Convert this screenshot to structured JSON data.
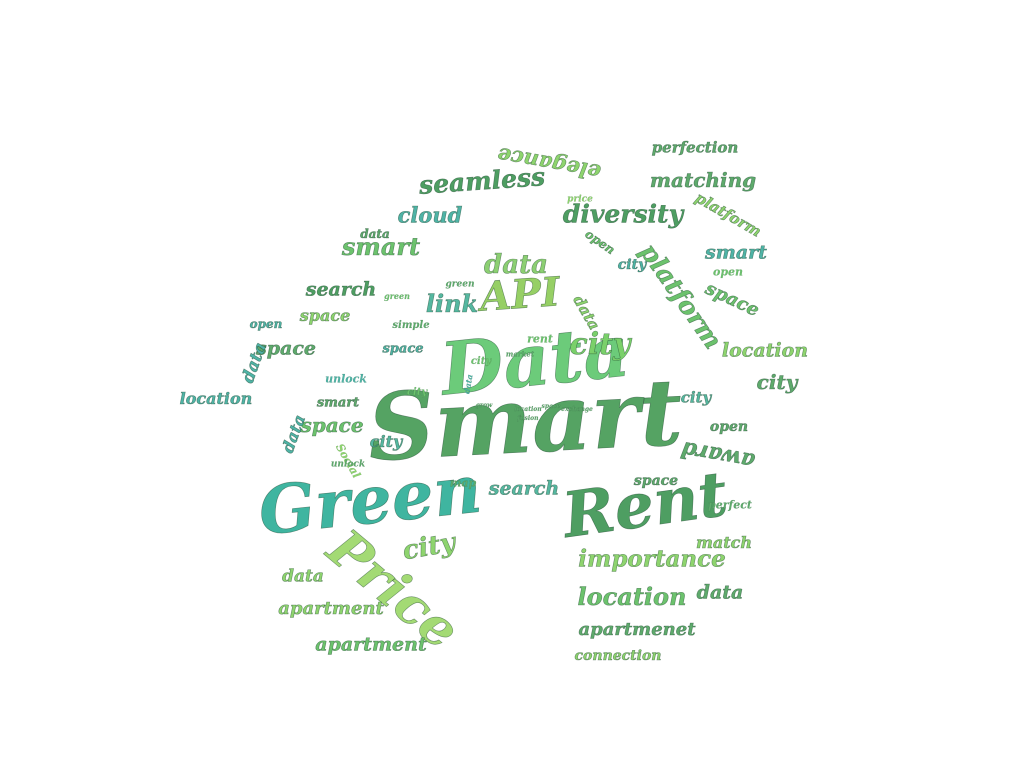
{
  "palette": {
    "dark": "#4e9e62",
    "mid": "#5eb86f",
    "light": "#96d37a",
    "teal": "#3fb5a0",
    "lime": "#a6d96a"
  },
  "words": [
    {
      "text": "Smart",
      "color": "#55a363"
    },
    {
      "text": "Data",
      "color": "#6ccb7a"
    },
    {
      "text": "Green",
      "color": "#3fb5a0"
    },
    {
      "text": "Rent",
      "color": "#4e9e62"
    },
    {
      "text": "Price",
      "color": "#a3da74"
    },
    {
      "text": "API",
      "color": "#96cf65"
    },
    {
      "text": "city",
      "color": "#7ad06a"
    },
    {
      "text": "data",
      "color": "#8ccf72"
    },
    {
      "text": "link",
      "color": "#55b7a0"
    },
    {
      "text": "diversity",
      "color": "#4e9e62"
    },
    {
      "text": "seamless",
      "color": "#4e9e62"
    },
    {
      "text": "cloud",
      "color": "#4fb3a6"
    },
    {
      "text": "smart",
      "color": "#6cc26d"
    },
    {
      "text": "data",
      "color": "#5eaa6c"
    },
    {
      "text": "search",
      "color": "#4e9e62"
    },
    {
      "text": "space",
      "color": "#8ed46e"
    },
    {
      "text": "open",
      "color": "#4fb3a6"
    },
    {
      "text": "space",
      "color": "#5eaa6c"
    },
    {
      "text": "data",
      "color": "#4fb3a6"
    },
    {
      "text": "location",
      "color": "#4fb3a6"
    },
    {
      "text": "unlock",
      "color": "#4fb3a6"
    },
    {
      "text": "smart",
      "color": "#5eaa6c"
    },
    {
      "text": "space",
      "color": "#6cc26d"
    },
    {
      "text": "data",
      "color": "#4fb3a6"
    },
    {
      "text": "city",
      "color": "#55b7a0"
    },
    {
      "text": "city",
      "color": "#6cc26d"
    },
    {
      "text": "space",
      "color": "#4fb3a6"
    },
    {
      "text": "simple",
      "color": "#5eaa6c"
    },
    {
      "text": "green",
      "color": "#6cc26d"
    },
    {
      "text": "green",
      "color": "#5eaa6c"
    },
    {
      "text": "perfection",
      "color": "#5eaa6c"
    },
    {
      "text": "matching",
      "color": "#5eaa6c"
    },
    {
      "text": "platform",
      "color": "#8ed46e"
    },
    {
      "text": "smart",
      "color": "#4fb3a6"
    },
    {
      "text": "open",
      "color": "#6cc26d"
    },
    {
      "text": "space",
      "color": "#6cc26d"
    },
    {
      "text": "platform",
      "color": "#6cc26d"
    },
    {
      "text": "city",
      "color": "#4fb3a6"
    },
    {
      "text": "open",
      "color": "#6cc26d"
    },
    {
      "text": "location",
      "color": "#8ed46e"
    },
    {
      "text": "city",
      "color": "#5eaa6c"
    },
    {
      "text": "elegance",
      "color": "#8ed46e"
    },
    {
      "text": "price",
      "color": "#8ed46e"
    },
    {
      "text": "city",
      "color": "#55b7a0"
    },
    {
      "text": "open",
      "color": "#5eaa6c"
    },
    {
      "text": "award",
      "color": "#5eaa6c"
    },
    {
      "text": "rent",
      "color": "#6cc26d"
    },
    {
      "text": "data",
      "color": "#8ed46e"
    },
    {
      "text": "space",
      "color": "#5eaa6c"
    },
    {
      "text": "perfect",
      "color": "#5eaa6c"
    },
    {
      "text": "match",
      "color": "#8ed46e"
    },
    {
      "text": "search",
      "color": "#55b7a0"
    },
    {
      "text": "map",
      "color": "#5eaa6c"
    },
    {
      "text": "city",
      "color": "#8ed46e"
    },
    {
      "text": "importance",
      "color": "#8ed46e"
    },
    {
      "text": "location",
      "color": "#6cc26d"
    },
    {
      "text": "data",
      "color": "#5eaa6c"
    },
    {
      "text": "data",
      "color": "#8ed46e"
    },
    {
      "text": "apartment",
      "color": "#8ed46e"
    },
    {
      "text": "apartment",
      "color": "#6cc26d"
    },
    {
      "text": "apartmenet",
      "color": "#5eaa6c"
    },
    {
      "text": "connection",
      "color": "#8ed46e"
    },
    {
      "text": "Social",
      "color": "#8ed46e"
    },
    {
      "text": "unlock",
      "color": "#5eaa6c"
    },
    {
      "text": "data",
      "color": "#4fb3a6"
    },
    {
      "text": "city",
      "color": "#6cc26d"
    },
    {
      "text": "market",
      "color": "#5eaa6c"
    },
    {
      "text": "grow",
      "color": "#5eaa6c"
    },
    {
      "text": "location",
      "color": "#5eaa6c"
    },
    {
      "text": "fusion",
      "color": "#5eaa6c"
    },
    {
      "text": "space",
      "color": "#5eaa6c"
    },
    {
      "text": "exchange",
      "color": "#5eaa6c"
    }
  ]
}
